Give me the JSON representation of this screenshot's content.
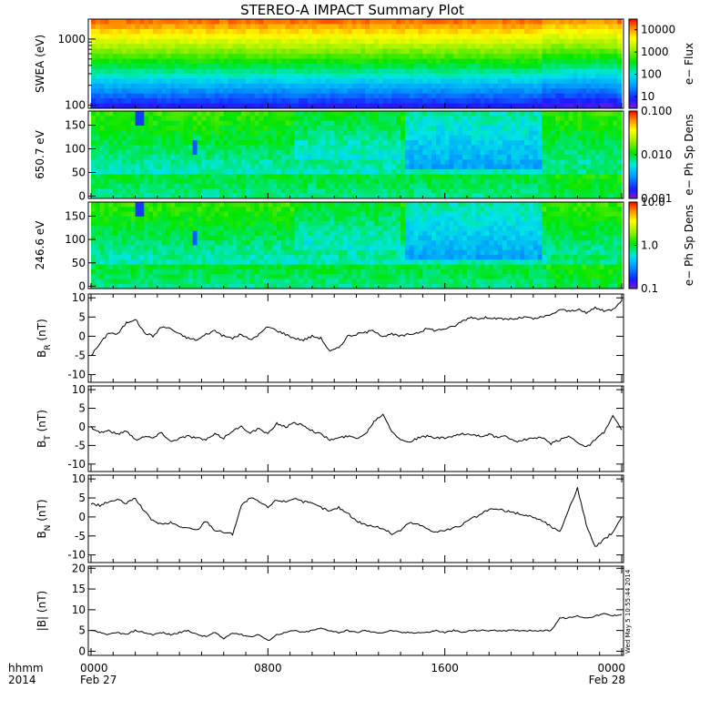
{
  "chart_data": {
    "title": "STEREO-A IMPACT Summary Plot",
    "x_axis": {
      "label_line1": "hhmm",
      "label_line2": "2014",
      "range_hours": [
        0,
        24
      ],
      "ticks": [
        {
          "h": 0,
          "l1": "0000",
          "l2": "Feb 27"
        },
        {
          "h": 8,
          "l1": "0800",
          "l2": ""
        },
        {
          "h": 16,
          "l1": "1600",
          "l2": ""
        },
        {
          "h": 24,
          "l1": "0000",
          "l2": "Feb 28"
        }
      ]
    },
    "timestamp": "Wed May 5 10:55:44 2014",
    "spectrograms": [
      {
        "type": "heatmap",
        "ylabel": "SWEA (eV)",
        "yscale": "log",
        "ylim": [
          90,
          2000
        ],
        "yticks": [
          {
            "v": 100,
            "l": "100"
          },
          {
            "v": 1000,
            "l": "1000"
          }
        ],
        "colorbar_label": "e− Flux",
        "colorbar_scale": "log",
        "colorbar_range": [
          3,
          30000
        ],
        "colorbar_ticks": [
          {
            "v": 10,
            "l": "10"
          },
          {
            "v": 100,
            "l": "100"
          },
          {
            "v": 1000,
            "l": "1000"
          },
          {
            "v": 10000,
            "l": "10000"
          }
        ],
        "profile_rows": [
          [
            0.0,
            1.0
          ],
          [
            0.1,
            0.9
          ],
          [
            0.2,
            0.78
          ],
          [
            0.3,
            0.68
          ],
          [
            0.4,
            0.58
          ],
          [
            0.5,
            0.5
          ],
          [
            0.6,
            0.43
          ],
          [
            0.7,
            0.36
          ],
          [
            0.8,
            0.28
          ],
          [
            0.9,
            0.14
          ],
          [
            1.0,
            0.02
          ]
        ]
      },
      {
        "type": "heatmap",
        "ylabel": "650.7 eV",
        "yscale": "linear",
        "ylim": [
          -5,
          180
        ],
        "yticks": [
          {
            "v": 0,
            "l": "0"
          },
          {
            "v": 50,
            "l": "50"
          },
          {
            "v": 100,
            "l": "100"
          },
          {
            "v": 150,
            "l": "150"
          }
        ],
        "colorbar_label": "e− Ph Sp Dens",
        "colorbar_scale": "log",
        "colorbar_range": [
          0.001,
          0.1
        ],
        "colorbar_ticks": [
          {
            "v": 0.001,
            "l": "0.001"
          },
          {
            "v": 0.01,
            "l": "0.010"
          },
          {
            "v": 0.1,
            "l": "0.100"
          }
        ]
      },
      {
        "type": "heatmap",
        "ylabel": "246.6 eV",
        "yscale": "linear",
        "ylim": [
          -5,
          180
        ],
        "yticks": [
          {
            "v": 0,
            "l": "0"
          },
          {
            "v": 50,
            "l": "50"
          },
          {
            "v": 100,
            "l": "100"
          },
          {
            "v": 150,
            "l": "150"
          }
        ],
        "colorbar_label": "e− Ph Sp Dens",
        "colorbar_scale": "log",
        "colorbar_range": [
          0.1,
          10
        ],
        "colorbar_ticks": [
          {
            "v": 0.1,
            "l": "0.1"
          },
          {
            "v": 1,
            "l": "1.0"
          },
          {
            "v": 10,
            "l": "10.0"
          }
        ]
      }
    ],
    "line_panels": [
      {
        "type": "line",
        "ylabel": "B",
        "ysub": "R",
        "yunit": " (nT)",
        "ylim": [
          -12,
          11
        ],
        "yticks": [
          -10,
          -5,
          0,
          5,
          10
        ],
        "x_hours": [
          0.0,
          0.4,
          0.8,
          1.2,
          1.6,
          2.0,
          2.4,
          2.8,
          3.2,
          3.6,
          4.0,
          4.4,
          4.8,
          5.2,
          5.6,
          6.0,
          6.4,
          6.8,
          7.2,
          7.6,
          8.0,
          8.4,
          8.8,
          9.2,
          9.6,
          10.0,
          10.4,
          10.8,
          11.2,
          11.6,
          12.0,
          12.4,
          12.8,
          13.2,
          13.6,
          14.0,
          14.4,
          14.8,
          15.2,
          15.6,
          16.0,
          16.4,
          16.8,
          17.2,
          17.6,
          18.0,
          18.4,
          18.8,
          19.2,
          19.6,
          20.0,
          20.4,
          20.8,
          21.2,
          21.6,
          22.0,
          22.4,
          22.8,
          23.2,
          23.6,
          24.0
        ],
        "values": [
          -5.0,
          -2.0,
          1.0,
          0.5,
          3.5,
          4.5,
          1.0,
          0.0,
          2.5,
          2.0,
          0.5,
          -0.5,
          -1.0,
          0.5,
          1.5,
          0.0,
          -0.5,
          0.5,
          -1.0,
          0.5,
          2.5,
          1.5,
          0.5,
          -0.5,
          -1.0,
          0.0,
          -0.5,
          -4.0,
          -3.0,
          0.0,
          0.5,
          1.0,
          1.5,
          0.0,
          0.5,
          0.0,
          0.5,
          1.0,
          2.0,
          1.5,
          2.0,
          2.5,
          4.0,
          5.0,
          4.5,
          5.0,
          4.5,
          4.5,
          4.5,
          5.0,
          4.5,
          5.0,
          5.5,
          7.0,
          6.5,
          7.0,
          6.0,
          7.5,
          6.5,
          7.0,
          9.5
        ]
      },
      {
        "type": "line",
        "ylabel": "B",
        "ysub": "T",
        "yunit": " (nT)",
        "ylim": [
          -12,
          11
        ],
        "yticks": [
          -10,
          -5,
          0,
          5,
          10
        ],
        "x_hours": [
          0.0,
          0.4,
          0.8,
          1.2,
          1.6,
          2.0,
          2.4,
          2.8,
          3.2,
          3.6,
          4.0,
          4.4,
          4.8,
          5.2,
          5.6,
          6.0,
          6.4,
          6.8,
          7.2,
          7.6,
          8.0,
          8.4,
          8.8,
          9.2,
          9.6,
          10.0,
          10.4,
          10.8,
          11.2,
          11.6,
          12.0,
          12.4,
          12.8,
          13.2,
          13.6,
          14.0,
          14.4,
          14.8,
          15.2,
          15.6,
          16.0,
          16.4,
          16.8,
          17.2,
          17.6,
          18.0,
          18.4,
          18.8,
          19.2,
          19.6,
          20.0,
          20.4,
          20.8,
          21.2,
          21.6,
          22.0,
          22.4,
          22.8,
          23.2,
          23.6,
          24.0
        ],
        "values": [
          0.0,
          -1.5,
          -1.0,
          -2.0,
          -1.0,
          -3.5,
          -2.5,
          -3.0,
          -1.5,
          -4.0,
          -3.0,
          -2.5,
          -3.0,
          -3.5,
          -2.0,
          -3.0,
          -1.0,
          0.0,
          -1.5,
          -0.5,
          -2.0,
          1.0,
          0.0,
          1.0,
          0.5,
          -1.0,
          -2.0,
          -3.5,
          -3.0,
          -2.5,
          -3.0,
          -2.0,
          1.5,
          3.5,
          -1.0,
          -3.5,
          -4.0,
          -3.0,
          -2.5,
          -3.0,
          -3.0,
          -2.5,
          -2.0,
          -2.0,
          -2.5,
          -2.0,
          -3.0,
          -2.5,
          -4.0,
          -3.5,
          -3.0,
          -3.0,
          -4.5,
          -3.5,
          -2.5,
          -4.0,
          -5.5,
          -3.5,
          -1.5,
          3.0,
          -1.0
        ]
      },
      {
        "type": "line",
        "ylabel": "B",
        "ysub": "N",
        "yunit": " (nT)",
        "ylim": [
          -12,
          11
        ],
        "yticks": [
          -10,
          -5,
          0,
          5,
          10
        ],
        "x_hours": [
          0.0,
          0.4,
          0.8,
          1.2,
          1.6,
          2.0,
          2.4,
          2.8,
          3.2,
          3.6,
          4.0,
          4.4,
          4.8,
          5.2,
          5.6,
          6.0,
          6.4,
          6.8,
          7.2,
          7.6,
          8.0,
          8.4,
          8.8,
          9.2,
          9.6,
          10.0,
          10.4,
          10.8,
          11.2,
          11.6,
          12.0,
          12.4,
          12.8,
          13.2,
          13.6,
          14.0,
          14.4,
          14.8,
          15.2,
          15.6,
          16.0,
          16.4,
          16.8,
          17.2,
          17.6,
          18.0,
          18.4,
          18.8,
          19.2,
          19.6,
          20.0,
          20.4,
          20.8,
          21.2,
          21.6,
          22.0,
          22.4,
          22.8,
          23.2,
          23.6,
          24.0
        ],
        "values": [
          3.5,
          3.0,
          4.0,
          4.5,
          3.5,
          5.0,
          1.5,
          -1.0,
          -2.0,
          -1.5,
          -2.5,
          -3.0,
          -3.5,
          -1.0,
          -3.5,
          -4.0,
          -4.5,
          3.0,
          5.0,
          4.0,
          2.5,
          4.5,
          4.0,
          5.0,
          4.0,
          3.5,
          2.5,
          1.5,
          2.5,
          1.0,
          -1.0,
          -2.0,
          -2.5,
          -3.0,
          -4.5,
          -3.5,
          -1.5,
          -2.0,
          -3.0,
          -4.0,
          -3.5,
          -3.0,
          -2.0,
          -0.5,
          0.5,
          2.0,
          2.0,
          1.5,
          1.0,
          0.5,
          0.0,
          -1.0,
          -2.5,
          -4.0,
          2.0,
          7.5,
          -2.0,
          -8.0,
          -6.0,
          -4.0,
          0.0
        ]
      },
      {
        "type": "line",
        "ylabel": "|B|",
        "ysub": "",
        "yunit": " (nT)",
        "ylim": [
          -1,
          20.5
        ],
        "yticks": [
          0,
          5,
          10,
          15,
          20
        ],
        "x_hours": [
          0.0,
          0.4,
          0.8,
          1.2,
          1.6,
          2.0,
          2.4,
          2.8,
          3.2,
          3.6,
          4.0,
          4.4,
          4.8,
          5.2,
          5.6,
          6.0,
          6.4,
          6.8,
          7.2,
          7.6,
          8.0,
          8.4,
          8.8,
          9.2,
          9.6,
          10.0,
          10.4,
          10.8,
          11.2,
          11.6,
          12.0,
          12.4,
          12.8,
          13.2,
          13.6,
          14.0,
          14.4,
          14.8,
          15.2,
          15.6,
          16.0,
          16.4,
          16.8,
          17.2,
          17.6,
          18.0,
          18.4,
          18.8,
          19.2,
          19.6,
          20.0,
          20.4,
          20.8,
          21.2,
          21.6,
          22.0,
          22.4,
          22.8,
          23.2,
          23.6,
          24.0
        ],
        "values": [
          5.0,
          4.5,
          4.0,
          4.5,
          4.0,
          5.0,
          4.5,
          4.0,
          4.5,
          4.0,
          4.5,
          5.0,
          4.0,
          3.5,
          4.5,
          3.0,
          4.5,
          4.0,
          3.5,
          4.0,
          2.5,
          4.0,
          4.5,
          5.0,
          4.5,
          5.0,
          5.5,
          5.0,
          4.5,
          5.0,
          4.5,
          5.0,
          4.5,
          4.5,
          5.0,
          4.5,
          4.5,
          4.5,
          4.5,
          5.0,
          4.5,
          5.0,
          4.5,
          5.0,
          5.0,
          5.0,
          5.0,
          5.0,
          5.0,
          5.0,
          5.0,
          5.0,
          5.0,
          8.0,
          8.0,
          8.5,
          8.0,
          8.5,
          9.0,
          8.5,
          9.0
        ]
      }
    ]
  }
}
